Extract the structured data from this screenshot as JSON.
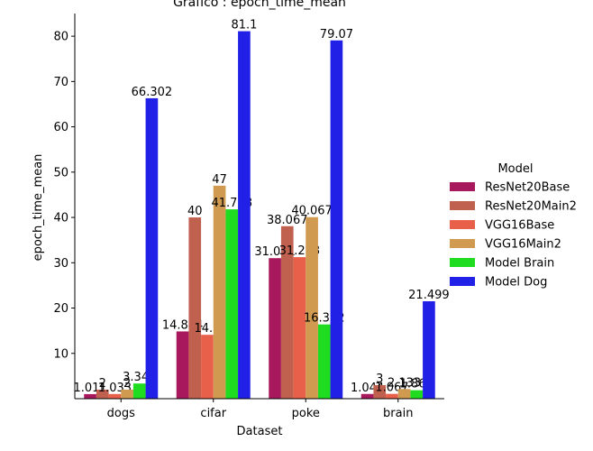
{
  "chart_data": {
    "type": "bar",
    "title": "Grafico : epoch_time_mean",
    "xlabel": "Dataset",
    "ylabel": "epoch_time_mean",
    "categories": [
      "dogs",
      "cifar",
      "poke",
      "brain"
    ],
    "ylim": [
      0,
      85
    ],
    "yticks": [
      10,
      20,
      30,
      40,
      50,
      60,
      70,
      80
    ],
    "legend": {
      "title": "Model",
      "placement": "right"
    },
    "series": [
      {
        "name": "ResNet20Base",
        "color": "#a8185c",
        "values": [
          1.011,
          14.844,
          31.011,
          1.044
        ],
        "labels": [
          "1.011",
          "14.844",
          "31.011",
          "1.044"
        ]
      },
      {
        "name": "ResNet20Main2",
        "color": "#c0604f",
        "values": [
          2,
          40,
          38.067,
          3
        ],
        "labels": [
          "2",
          "40",
          "38.067",
          "3"
        ]
      },
      {
        "name": "VGG16Base",
        "color": "#e8604a",
        "values": [
          1.033,
          14.1,
          31.233,
          1.067
        ],
        "labels": [
          "1.033",
          "14.1",
          "31.233",
          "1.067"
        ]
      },
      {
        "name": "VGG16Main2",
        "color": "#d09a50",
        "values": [
          2,
          47,
          40.067,
          2.133
        ],
        "labels": [
          "2",
          "47",
          "40.067",
          "2.133"
        ]
      },
      {
        "name": "Model Brain",
        "color": "#20dc20",
        "values": [
          3.349,
          41.788,
          16.392,
          1.867
        ],
        "labels": [
          "3.349",
          "41.788",
          "16.392",
          "1.867"
        ]
      },
      {
        "name": "Model Dog",
        "color": "#2020e6",
        "values": [
          66.302,
          81.1,
          79.07,
          21.499
        ],
        "labels": [
          "66.302",
          "81.1",
          "79.07",
          "21.499"
        ]
      }
    ]
  }
}
